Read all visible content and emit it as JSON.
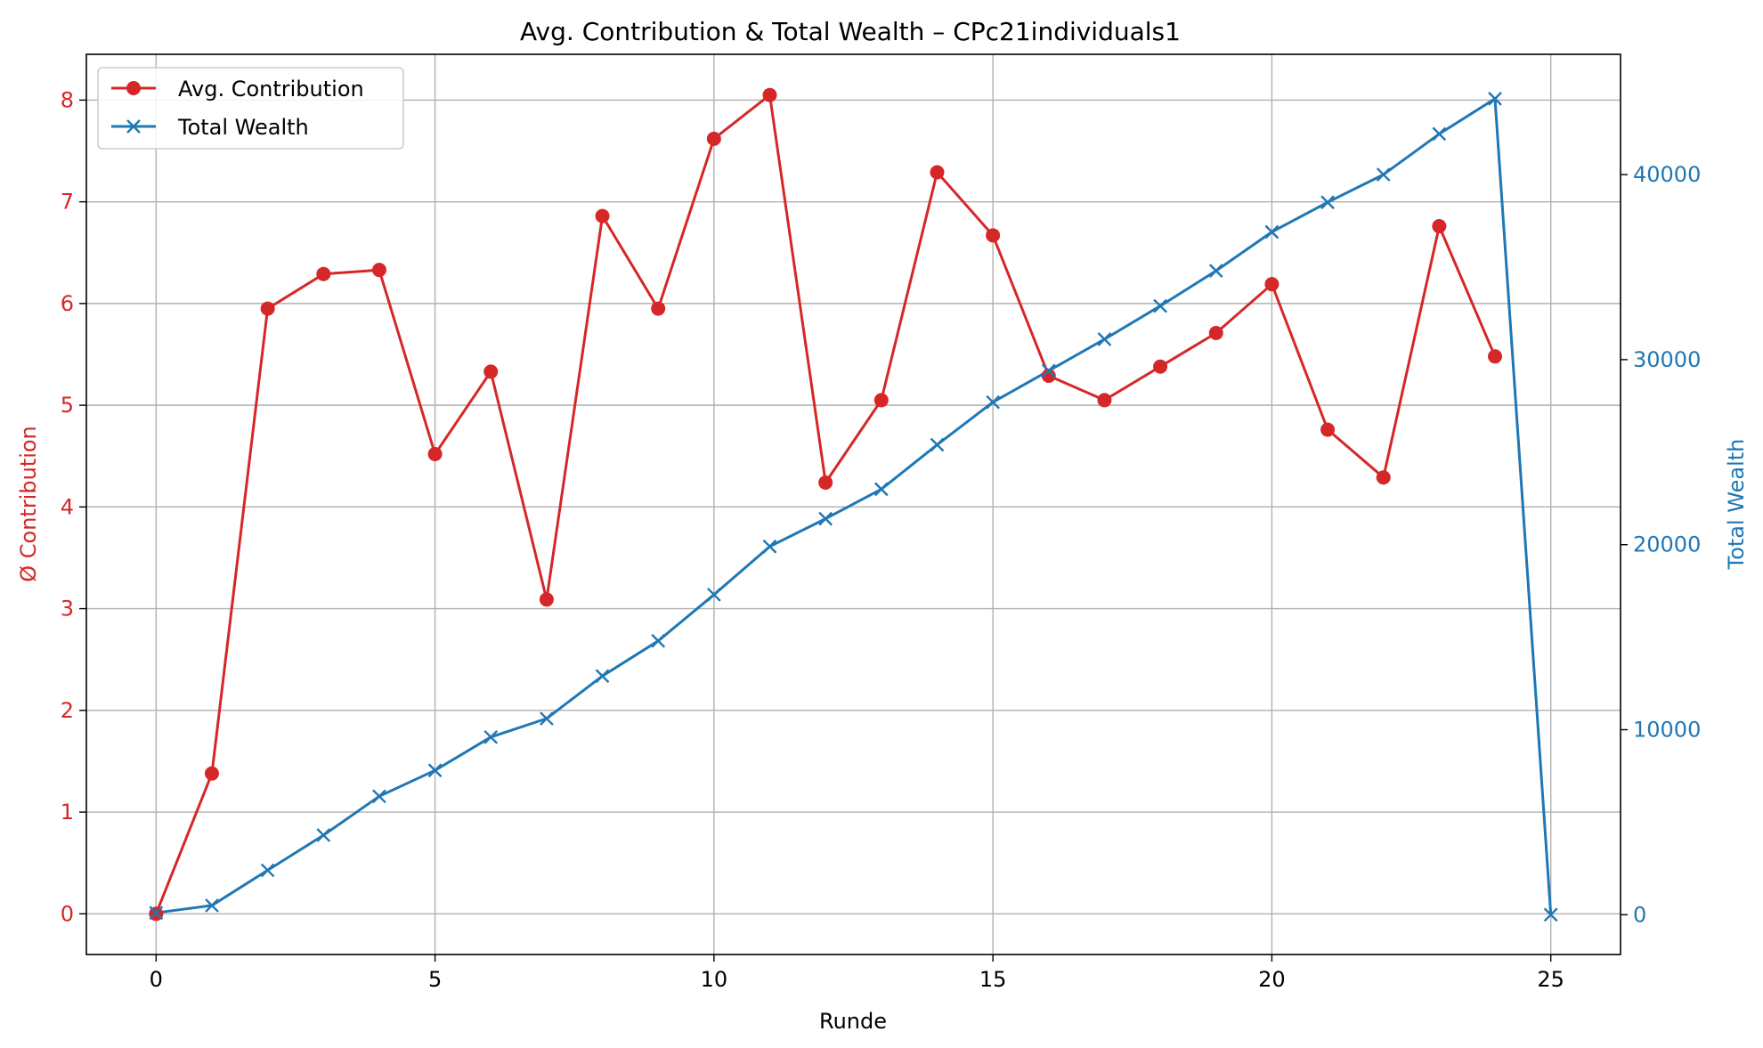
{
  "chart_data": {
    "type": "line",
    "title": "Avg. Contribution & Total Wealth – CPc21individuals1",
    "xlabel": "Runde",
    "ylabel_left": "Ø Contribution",
    "ylabel_right": "Total Wealth",
    "xlim": [
      -1.25,
      26.25
    ],
    "ylim_left": [
      -0.4,
      8.45
    ],
    "ylim_right": [
      -2150,
      46500
    ],
    "x_ticks": [
      0,
      5,
      10,
      15,
      20,
      25
    ],
    "y_ticks_left": [
      0,
      1,
      2,
      3,
      4,
      5,
      6,
      7,
      8
    ],
    "y_ticks_right": [
      0,
      10000,
      20000,
      30000,
      40000
    ],
    "grid": true,
    "legend_position": "top-left",
    "series": [
      {
        "name": "Avg. Contribution",
        "axis": "left",
        "color": "#d62728",
        "marker": "circle",
        "x": [
          0,
          1,
          2,
          3,
          4,
          5,
          6,
          7,
          8,
          9,
          10,
          11,
          12,
          13,
          14,
          15,
          16,
          17,
          18,
          19,
          20,
          21,
          22,
          23,
          24
        ],
        "values": [
          0.0,
          1.38,
          5.95,
          6.29,
          6.33,
          4.52,
          5.33,
          3.09,
          6.86,
          5.95,
          7.62,
          8.05,
          4.24,
          5.05,
          7.29,
          6.67,
          5.29,
          5.05,
          5.38,
          5.71,
          6.19,
          4.76,
          4.29,
          6.76,
          5.48
        ]
      },
      {
        "name": "Total Wealth",
        "axis": "right",
        "color": "#1f77b4",
        "marker": "x",
        "x": [
          0,
          1,
          2,
          3,
          4,
          5,
          6,
          7,
          8,
          9,
          10,
          11,
          12,
          13,
          14,
          15,
          16,
          17,
          18,
          19,
          20,
          21,
          22,
          23,
          24,
          25
        ],
        "values": [
          100,
          500,
          2400,
          4300,
          6400,
          7800,
          9600,
          10600,
          12900,
          14800,
          17300,
          19900,
          21400,
          23000,
          25400,
          27700,
          29400,
          31100,
          32900,
          34800,
          36900,
          38500,
          40000,
          42200,
          44100,
          0
        ]
      }
    ]
  }
}
